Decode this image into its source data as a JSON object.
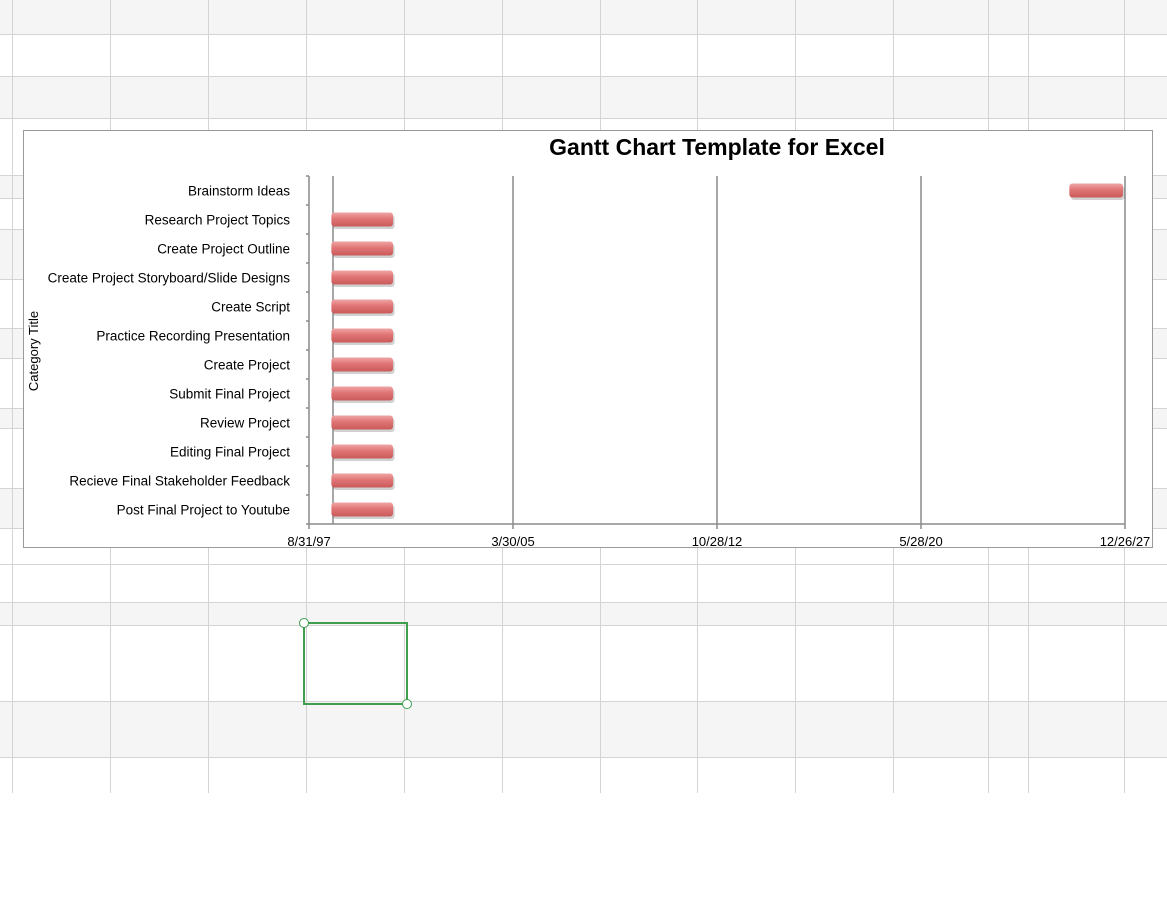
{
  "chart_data": {
    "type": "bar",
    "subtype": "gantt",
    "title": "Gantt Chart Template for Excel",
    "ylabel": "Category Title",
    "xlabel": "",
    "x_tick_labels": [
      "8/31/97",
      "3/30/05",
      "10/28/12",
      "5/28/20",
      "12/26/27"
    ],
    "xlim": [
      "1997-08-31",
      "2027-12-26"
    ],
    "categories": [
      "Brainstorm Ideas",
      "Research Project Topics",
      "Create Project Outline",
      "Create Project Storyboard/Slide Designs",
      "Create Script",
      "Practice Recording Presentation",
      "Create Project",
      "Submit Final Project",
      "Review Project",
      "Editing Final Project",
      "Recieve Final Stakeholder Feedback",
      "Post Final Project to Youtube"
    ],
    "tasks": [
      {
        "start": "2025-12-01",
        "end": "2027-12-26"
      },
      {
        "start": "1998-07-01",
        "end": "2000-10-15"
      },
      {
        "start": "1998-07-01",
        "end": "2000-10-15"
      },
      {
        "start": "1998-07-01",
        "end": "2000-10-15"
      },
      {
        "start": "1998-07-01",
        "end": "2000-10-15"
      },
      {
        "start": "1998-07-01",
        "end": "2000-10-15"
      },
      {
        "start": "1998-07-01",
        "end": "2000-10-15"
      },
      {
        "start": "1998-07-01",
        "end": "2000-10-15"
      },
      {
        "start": "1998-07-01",
        "end": "2000-10-15"
      },
      {
        "start": "1998-07-01",
        "end": "2000-10-15"
      },
      {
        "start": "1998-07-01",
        "end": "2000-10-15"
      },
      {
        "start": "1998-07-01",
        "end": "2000-10-15"
      }
    ],
    "bar_color": "#e07474",
    "gridlines": "vertical",
    "legend": "none"
  },
  "colors": {
    "sheet_grid": "#d4d4d4",
    "sheet_alt_row": "#f5f5f5",
    "selection": "#3f9f4f"
  }
}
